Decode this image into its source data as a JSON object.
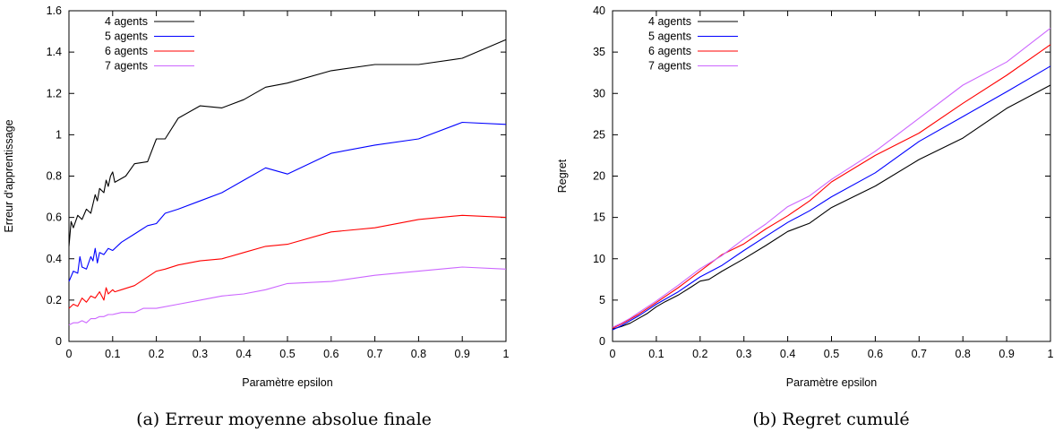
{
  "chart_data": [
    {
      "type": "line",
      "caption": "(a) Erreur moyenne absolue finale",
      "xlabel": "Paramètre epsilon",
      "ylabel": "Erreur d'apprentissage",
      "xlim": [
        0,
        1
      ],
      "ylim": [
        0,
        1.6
      ],
      "xticks": [
        0,
        0.1,
        0.2,
        0.3,
        0.4,
        0.5,
        0.6,
        0.7,
        0.8,
        0.9,
        1
      ],
      "yticks": [
        0,
        0.2,
        0.4,
        0.6,
        0.8,
        1,
        1.2,
        1.4,
        1.6
      ],
      "legend_position": "top-left",
      "series": [
        {
          "name": "4 agents",
          "color": "#000000",
          "points": [
            [
              0,
              0.46
            ],
            [
              0.005,
              0.58
            ],
            [
              0.01,
              0.55
            ],
            [
              0.02,
              0.61
            ],
            [
              0.03,
              0.59
            ],
            [
              0.04,
              0.64
            ],
            [
              0.05,
              0.62
            ],
            [
              0.06,
              0.71
            ],
            [
              0.065,
              0.68
            ],
            [
              0.07,
              0.74
            ],
            [
              0.08,
              0.72
            ],
            [
              0.085,
              0.78
            ],
            [
              0.09,
              0.75
            ],
            [
              0.095,
              0.8
            ],
            [
              0.1,
              0.82
            ],
            [
              0.105,
              0.77
            ],
            [
              0.13,
              0.8
            ],
            [
              0.15,
              0.86
            ],
            [
              0.18,
              0.87
            ],
            [
              0.2,
              0.98
            ],
            [
              0.22,
              0.98
            ],
            [
              0.25,
              1.08
            ],
            [
              0.3,
              1.14
            ],
            [
              0.35,
              1.13
            ],
            [
              0.4,
              1.17
            ],
            [
              0.45,
              1.23
            ],
            [
              0.5,
              1.25
            ],
            [
              0.6,
              1.31
            ],
            [
              0.7,
              1.34
            ],
            [
              0.8,
              1.34
            ],
            [
              0.9,
              1.37
            ],
            [
              1,
              1.46
            ]
          ]
        },
        {
          "name": "5 agents",
          "color": "#0000ff",
          "points": [
            [
              0,
              0.29
            ],
            [
              0.01,
              0.34
            ],
            [
              0.02,
              0.33
            ],
            [
              0.025,
              0.41
            ],
            [
              0.03,
              0.36
            ],
            [
              0.04,
              0.35
            ],
            [
              0.05,
              0.41
            ],
            [
              0.055,
              0.39
            ],
            [
              0.06,
              0.45
            ],
            [
              0.065,
              0.38
            ],
            [
              0.07,
              0.43
            ],
            [
              0.08,
              0.42
            ],
            [
              0.09,
              0.45
            ],
            [
              0.1,
              0.44
            ],
            [
              0.12,
              0.48
            ],
            [
              0.15,
              0.52
            ],
            [
              0.18,
              0.56
            ],
            [
              0.2,
              0.57
            ],
            [
              0.22,
              0.62
            ],
            [
              0.25,
              0.64
            ],
            [
              0.3,
              0.68
            ],
            [
              0.35,
              0.72
            ],
            [
              0.4,
              0.78
            ],
            [
              0.45,
              0.84
            ],
            [
              0.5,
              0.81
            ],
            [
              0.6,
              0.91
            ],
            [
              0.7,
              0.95
            ],
            [
              0.8,
              0.98
            ],
            [
              0.9,
              1.06
            ],
            [
              1,
              1.05
            ]
          ]
        },
        {
          "name": "6 agents",
          "color": "#ff0000",
          "points": [
            [
              0,
              0.16
            ],
            [
              0.01,
              0.18
            ],
            [
              0.02,
              0.17
            ],
            [
              0.03,
              0.21
            ],
            [
              0.04,
              0.19
            ],
            [
              0.05,
              0.22
            ],
            [
              0.06,
              0.21
            ],
            [
              0.07,
              0.24
            ],
            [
              0.08,
              0.2
            ],
            [
              0.085,
              0.26
            ],
            [
              0.09,
              0.23
            ],
            [
              0.1,
              0.25
            ],
            [
              0.105,
              0.24
            ],
            [
              0.12,
              0.25
            ],
            [
              0.15,
              0.27
            ],
            [
              0.2,
              0.34
            ],
            [
              0.22,
              0.35
            ],
            [
              0.25,
              0.37
            ],
            [
              0.3,
              0.39
            ],
            [
              0.35,
              0.4
            ],
            [
              0.4,
              0.43
            ],
            [
              0.45,
              0.46
            ],
            [
              0.5,
              0.47
            ],
            [
              0.6,
              0.53
            ],
            [
              0.7,
              0.55
            ],
            [
              0.8,
              0.59
            ],
            [
              0.9,
              0.61
            ],
            [
              1,
              0.6
            ]
          ]
        },
        {
          "name": "7 agents",
          "color": "#cc66ff",
          "points": [
            [
              0,
              0.08
            ],
            [
              0.01,
              0.09
            ],
            [
              0.02,
              0.09
            ],
            [
              0.03,
              0.1
            ],
            [
              0.04,
              0.09
            ],
            [
              0.05,
              0.11
            ],
            [
              0.06,
              0.11
            ],
            [
              0.07,
              0.12
            ],
            [
              0.08,
              0.12
            ],
            [
              0.09,
              0.13
            ],
            [
              0.1,
              0.13
            ],
            [
              0.12,
              0.14
            ],
            [
              0.15,
              0.14
            ],
            [
              0.17,
              0.16
            ],
            [
              0.2,
              0.16
            ],
            [
              0.25,
              0.18
            ],
            [
              0.3,
              0.2
            ],
            [
              0.35,
              0.22
            ],
            [
              0.4,
              0.23
            ],
            [
              0.45,
              0.25
            ],
            [
              0.5,
              0.28
            ],
            [
              0.6,
              0.29
            ],
            [
              0.7,
              0.32
            ],
            [
              0.8,
              0.34
            ],
            [
              0.9,
              0.36
            ],
            [
              1,
              0.35
            ]
          ]
        }
      ]
    },
    {
      "type": "line",
      "caption": "(b) Regret cumulé",
      "xlabel": "Paramètre epsilon",
      "ylabel": "Regret",
      "xlim": [
        0,
        1
      ],
      "ylim": [
        0,
        40
      ],
      "xticks": [
        0,
        0.1,
        0.2,
        0.3,
        0.4,
        0.5,
        0.6,
        0.7,
        0.8,
        0.9,
        1
      ],
      "yticks": [
        0,
        5,
        10,
        15,
        20,
        25,
        30,
        35,
        40
      ],
      "legend_position": "top-left",
      "series": [
        {
          "name": "4 agents",
          "color": "#000000",
          "points": [
            [
              0,
              1.5
            ],
            [
              0.02,
              1.8
            ],
            [
              0.04,
              2.2
            ],
            [
              0.06,
              2.8
            ],
            [
              0.08,
              3.4
            ],
            [
              0.1,
              4.2
            ],
            [
              0.12,
              4.8
            ],
            [
              0.15,
              5.6
            ],
            [
              0.18,
              6.6
            ],
            [
              0.2,
              7.3
            ],
            [
              0.22,
              7.5
            ],
            [
              0.25,
              8.5
            ],
            [
              0.3,
              10.0
            ],
            [
              0.35,
              11.6
            ],
            [
              0.4,
              13.3
            ],
            [
              0.45,
              14.3
            ],
            [
              0.5,
              16.2
            ],
            [
              0.6,
              18.8
            ],
            [
              0.7,
              22.0
            ],
            [
              0.8,
              24.6
            ],
            [
              0.9,
              28.2
            ],
            [
              1,
              31.0
            ]
          ]
        },
        {
          "name": "5 agents",
          "color": "#0000ff",
          "points": [
            [
              0,
              1.4
            ],
            [
              0.02,
              1.9
            ],
            [
              0.04,
              2.5
            ],
            [
              0.06,
              3.1
            ],
            [
              0.08,
              3.8
            ],
            [
              0.1,
              4.5
            ],
            [
              0.15,
              6.0
            ],
            [
              0.2,
              7.8
            ],
            [
              0.25,
              9.2
            ],
            [
              0.3,
              11.0
            ],
            [
              0.35,
              12.7
            ],
            [
              0.4,
              14.4
            ],
            [
              0.45,
              15.8
            ],
            [
              0.5,
              17.5
            ],
            [
              0.6,
              20.4
            ],
            [
              0.7,
              24.2
            ],
            [
              0.8,
              27.2
            ],
            [
              0.9,
              30.2
            ],
            [
              1,
              33.3
            ]
          ]
        },
        {
          "name": "6 agents",
          "color": "#ff0000",
          "points": [
            [
              0,
              1.6
            ],
            [
              0.02,
              2.1
            ],
            [
              0.04,
              2.7
            ],
            [
              0.06,
              3.3
            ],
            [
              0.08,
              4.0
            ],
            [
              0.1,
              4.7
            ],
            [
              0.15,
              6.5
            ],
            [
              0.2,
              8.5
            ],
            [
              0.25,
              10.5
            ],
            [
              0.3,
              11.8
            ],
            [
              0.35,
              13.6
            ],
            [
              0.4,
              15.2
            ],
            [
              0.45,
              17.0
            ],
            [
              0.5,
              19.3
            ],
            [
              0.6,
              22.5
            ],
            [
              0.7,
              25.2
            ],
            [
              0.8,
              28.8
            ],
            [
              0.9,
              32.2
            ],
            [
              1,
              35.9
            ]
          ]
        },
        {
          "name": "7 agents",
          "color": "#cc66ff",
          "points": [
            [
              0,
              1.7
            ],
            [
              0.02,
              2.2
            ],
            [
              0.04,
              2.8
            ],
            [
              0.06,
              3.5
            ],
            [
              0.08,
              4.2
            ],
            [
              0.1,
              4.9
            ],
            [
              0.15,
              6.8
            ],
            [
              0.2,
              8.8
            ],
            [
              0.25,
              10.4
            ],
            [
              0.3,
              12.4
            ],
            [
              0.35,
              14.2
            ],
            [
              0.4,
              16.3
            ],
            [
              0.45,
              17.6
            ],
            [
              0.5,
              19.6
            ],
            [
              0.6,
              23.0
            ],
            [
              0.7,
              27.0
            ],
            [
              0.8,
              31.0
            ],
            [
              0.9,
              33.8
            ],
            [
              1,
              37.9
            ]
          ]
        }
      ]
    }
  ]
}
